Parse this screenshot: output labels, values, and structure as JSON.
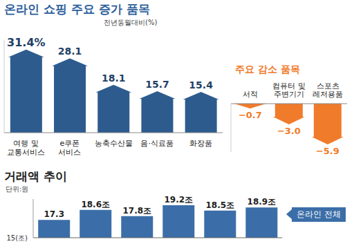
{
  "chart_data": [
    {
      "type": "bar",
      "title": "온라인 쇼핑 주요 증가 품목",
      "subtitle": "전년동월대비(%)",
      "categories": [
        "여행 및 교통서비스",
        "e쿠폰 서비스",
        "농축수산물",
        "음·식료품",
        "화장품"
      ],
      "values": [
        31.4,
        28.1,
        18.1,
        15.7,
        15.4
      ],
      "value_labels": [
        "31.4%",
        "28.1",
        "18.1",
        "15.7",
        "15.4"
      ],
      "color": "#2d5b8e",
      "ylim": [
        0,
        35
      ],
      "data_labels": true,
      "tick_labels": "x"
    },
    {
      "type": "bar",
      "title": "주요 감소 품목",
      "categories": [
        "서적",
        "컴퓨터 및 주변기기",
        "스포츠 레저용품"
      ],
      "values": [
        -0.7,
        -3.0,
        -5.9
      ],
      "value_labels": [
        "−0.7",
        "−3.0",
        "−5.9"
      ],
      "color": "#f07b2b",
      "ylim": [
        -7,
        0
      ],
      "data_labels": true,
      "tick_labels": "x"
    },
    {
      "type": "bar",
      "title": "거래액 추이",
      "subtitle": "단위:원",
      "categories": [
        null,
        null,
        null,
        null,
        null,
        null
      ],
      "series": [
        {
          "name": "온라인 전체",
          "color": "#3b6ea8",
          "values": [
            17.3,
            18.6,
            17.8,
            19.2,
            18.5,
            18.9
          ],
          "value_labels": [
            "17.3",
            "18.6조",
            "17.8조",
            "19.2조",
            "18.5조",
            "18.9조"
          ]
        }
      ],
      "ylim": [
        15,
        20
      ],
      "yticks": [
        {
          "value": 15,
          "label": "15(조)"
        }
      ],
      "legend": "right",
      "data_labels": true,
      "tick_labels": "y"
    }
  ]
}
